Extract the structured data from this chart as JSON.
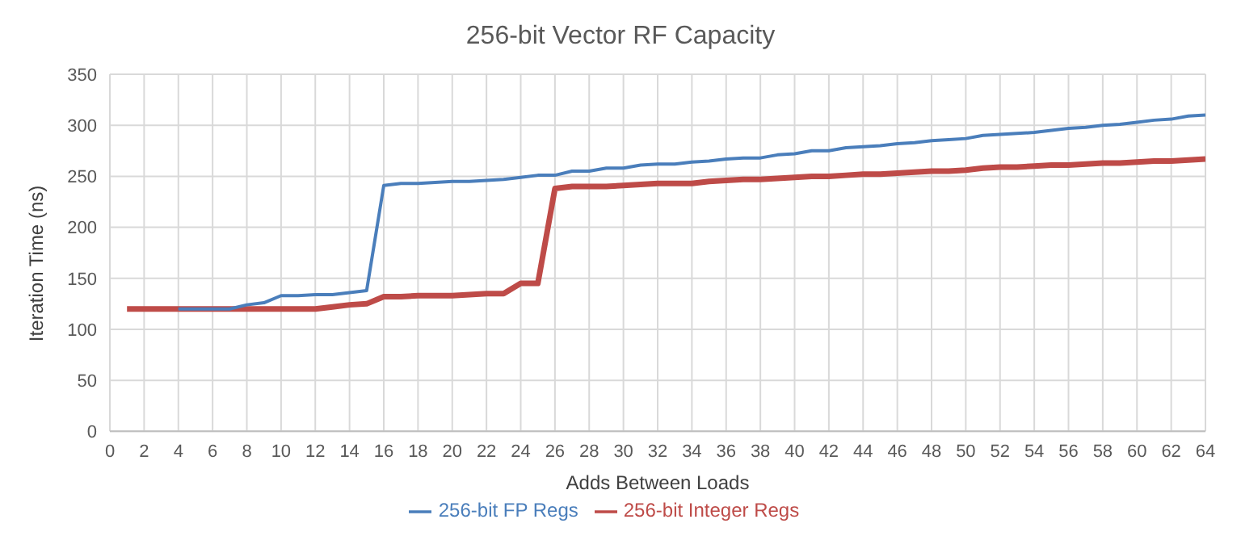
{
  "chart_data": {
    "type": "line",
    "title": "256-bit Vector RF Capacity",
    "xlabel": "Adds Between Loads",
    "ylabel": "Iteration Time (ns)",
    "x": [
      1,
      2,
      3,
      4,
      5,
      6,
      7,
      8,
      9,
      10,
      11,
      12,
      13,
      14,
      15,
      16,
      17,
      18,
      19,
      20,
      21,
      22,
      23,
      24,
      25,
      26,
      27,
      28,
      29,
      30,
      31,
      32,
      33,
      34,
      35,
      36,
      37,
      38,
      39,
      40,
      41,
      42,
      43,
      44,
      45,
      46,
      47,
      48,
      49,
      50,
      51,
      52,
      53,
      54,
      55,
      56,
      57,
      58,
      59,
      60,
      61,
      62,
      63,
      64
    ],
    "series": [
      {
        "name": "256-bit Integer Regs",
        "color": "#be4b48",
        "values": [
          120,
          120,
          120,
          120,
          120,
          120,
          120,
          120,
          120,
          120,
          120,
          120,
          122,
          124,
          125,
          132,
          132,
          133,
          133,
          133,
          134,
          135,
          135,
          145,
          145,
          238,
          240,
          240,
          240,
          241,
          242,
          243,
          243,
          243,
          245,
          246,
          247,
          247,
          248,
          249,
          250,
          250,
          251,
          252,
          252,
          253,
          254,
          255,
          255,
          256,
          258,
          259,
          259,
          260,
          261,
          261,
          262,
          263,
          263,
          264,
          265,
          265,
          266,
          267
        ]
      },
      {
        "name": "256-bit FP Regs",
        "color": "#4a7ebb",
        "values": [
          null,
          null,
          null,
          120,
          120,
          120,
          120,
          124,
          126,
          133,
          133,
          134,
          134,
          136,
          138,
          241,
          243,
          243,
          244,
          245,
          245,
          246,
          247,
          249,
          251,
          251,
          255,
          255,
          258,
          258,
          261,
          262,
          262,
          264,
          265,
          267,
          268,
          268,
          271,
          272,
          275,
          275,
          278,
          279,
          280,
          282,
          283,
          285,
          286,
          287,
          290,
          291,
          292,
          293,
          295,
          297,
          298,
          300,
          301,
          303,
          305,
          306,
          309,
          310
        ]
      }
    ],
    "xlim": [
      0,
      64
    ],
    "xticks": [
      0,
      2,
      4,
      6,
      8,
      10,
      12,
      14,
      16,
      18,
      20,
      22,
      24,
      26,
      28,
      30,
      32,
      34,
      36,
      38,
      40,
      42,
      44,
      46,
      48,
      50,
      52,
      54,
      56,
      58,
      60,
      62,
      64
    ],
    "ylim": [
      0,
      350
    ],
    "yticks": [
      0,
      50,
      100,
      150,
      200,
      250,
      300,
      350
    ],
    "grid": true,
    "legend": "bottom",
    "marker": "none",
    "line_style": "solid"
  }
}
